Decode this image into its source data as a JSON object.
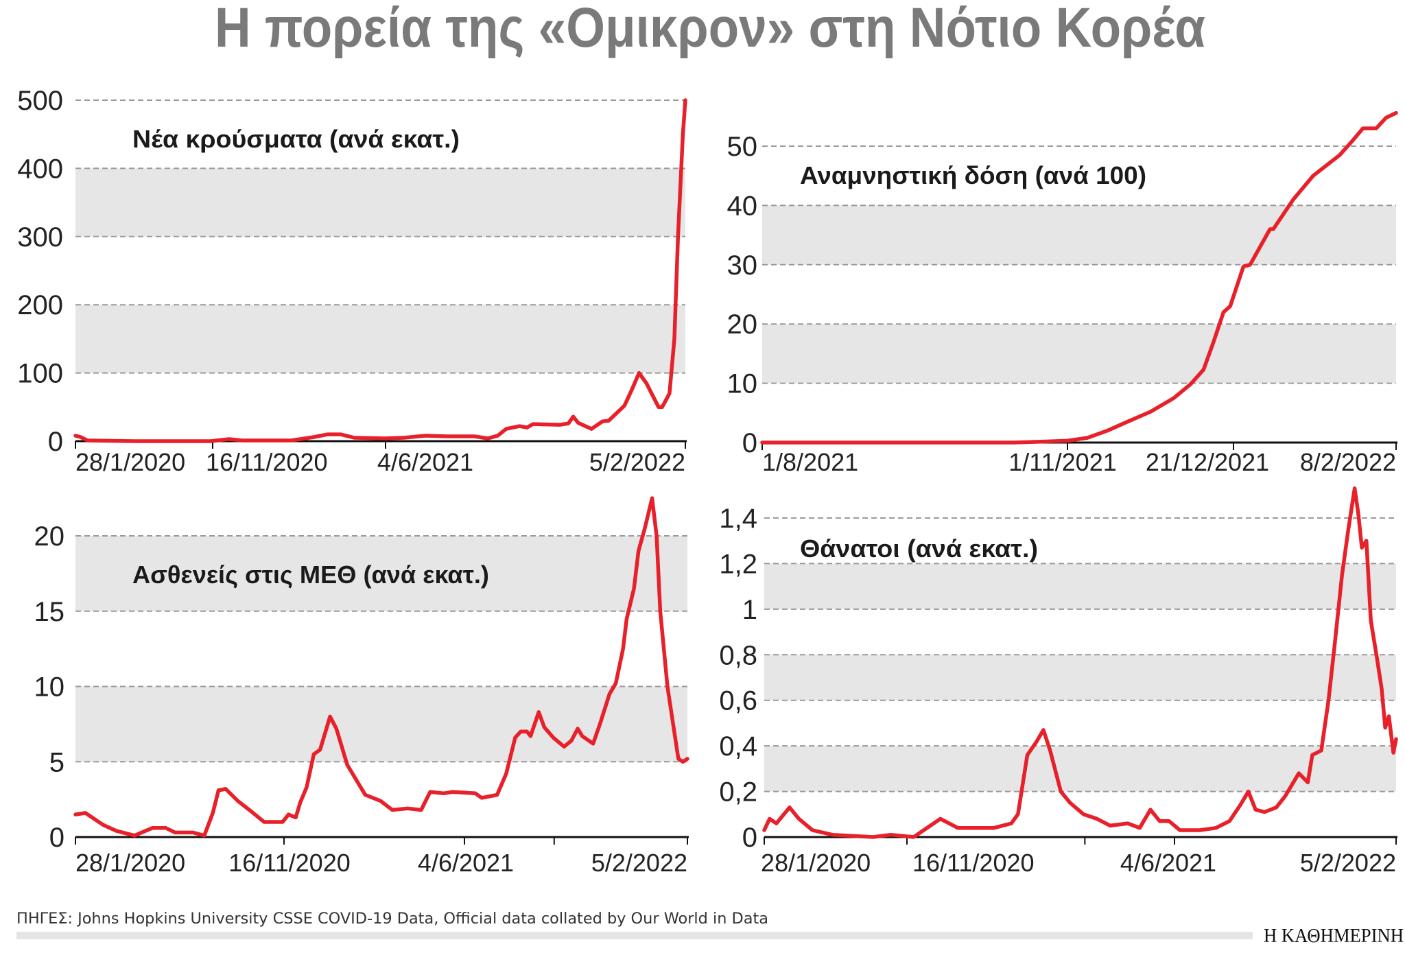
{
  "title": "Η πορεία της «Ομικρον» στη Νότιο Κορέα",
  "source": "ΠΗΓΕΣ: Johns Hopkins University CSSE COVID-19 Data, Official data collated by Our World in Data",
  "logo": "Η ΚΑΘΗΜΕΡΙΝΗ",
  "colors": {
    "line": "#e8202a",
    "band": "#e6e6e7",
    "grid": "#9a9a9a",
    "title": "#7a7a7a"
  },
  "chart_data": [
    {
      "type": "line",
      "title": "Νέα κρούσματα (ανά εκατ.)",
      "ylim": [
        0,
        500
      ],
      "grid": true,
      "y_ticks": [
        {
          "value": 0,
          "label": "0"
        },
        {
          "value": 100,
          "label": "100"
        },
        {
          "value": 200,
          "label": "200"
        },
        {
          "value": 300,
          "label": "300"
        },
        {
          "value": 400,
          "label": "400"
        },
        {
          "value": 500,
          "label": "500"
        }
      ],
      "shaded_bands": [
        [
          100,
          200
        ],
        [
          300,
          400
        ]
      ],
      "x_ticks": [
        {
          "date": "2020-01-28",
          "label": "28/1/2020"
        },
        {
          "date": "2020-11-16",
          "label": "16/11/2020"
        },
        {
          "date": "2021-06-04",
          "label": "4/6/2021"
        },
        {
          "date": "2022-02-05",
          "label": "5/2/2022"
        }
      ],
      "series": [
        {
          "points": [
            [
              "2020-01-28",
              8
            ],
            [
              "2020-02-08",
              6
            ],
            [
              "2020-02-23",
              1
            ],
            [
              "2020-06-02",
              0
            ],
            [
              "2020-11-12",
              0
            ],
            [
              "2020-12-05",
              3
            ],
            [
              "2020-12-20",
              1
            ],
            [
              "2021-02-15",
              1
            ],
            [
              "2021-03-13",
              6
            ],
            [
              "2021-03-29",
              10
            ],
            [
              "2021-04-13",
              10
            ],
            [
              "2021-04-29",
              5
            ],
            [
              "2021-06-03",
              4
            ],
            [
              "2021-06-19",
              5
            ],
            [
              "2021-07-07",
              8
            ],
            [
              "2021-07-25",
              7
            ],
            [
              "2021-08-16",
              7
            ],
            [
              "2021-08-27",
              4
            ],
            [
              "2021-09-04",
              8
            ],
            [
              "2021-09-11",
              18
            ],
            [
              "2021-09-22",
              22
            ],
            [
              "2021-09-28",
              20
            ],
            [
              "2021-10-03",
              25
            ],
            [
              "2021-10-25",
              24
            ],
            [
              "2021-11-01",
              26
            ],
            [
              "2021-11-05",
              36
            ],
            [
              "2021-11-09",
              27
            ],
            [
              "2021-11-20",
              18
            ],
            [
              "2021-11-29",
              29
            ],
            [
              "2021-12-04",
              30
            ],
            [
              "2021-12-17",
              52
            ],
            [
              "2021-12-23",
              75
            ],
            [
              "2021-12-29",
              100
            ],
            [
              "2022-01-04",
              85
            ],
            [
              "2022-01-14",
              50
            ],
            [
              "2022-01-17",
              50
            ],
            [
              "2022-01-23",
              70
            ],
            [
              "2022-01-27",
              150
            ],
            [
              "2022-01-30",
              300
            ],
            [
              "2022-02-03",
              450
            ],
            [
              "2022-02-05",
              500
            ]
          ]
        }
      ]
    },
    {
      "type": "line",
      "title": "Αναμνηστική δόση (ανά 100)",
      "ylim": [
        0,
        56
      ],
      "grid": true,
      "y_ticks": [
        {
          "value": 0,
          "label": "0"
        },
        {
          "value": 10,
          "label": "10"
        },
        {
          "value": 20,
          "label": "20"
        },
        {
          "value": 30,
          "label": "30"
        },
        {
          "value": 40,
          "label": "40"
        },
        {
          "value": 50,
          "label": "50"
        }
      ],
      "shaded_bands": [
        [
          10,
          20
        ],
        [
          30,
          40
        ]
      ],
      "x_ticks": [
        {
          "date": "2021-08-01",
          "label": "1/8/2021"
        },
        {
          "date": "2021-11-01",
          "label": "1/11/2021"
        },
        {
          "date": "2021-12-21",
          "label": "21/12/2021"
        },
        {
          "date": "2022-02-08",
          "label": "8/2/2022"
        }
      ],
      "series": [
        {
          "points": [
            [
              "2021-08-01",
              0
            ],
            [
              "2021-10-16",
              0
            ],
            [
              "2021-11-01",
              0.3
            ],
            [
              "2021-11-07",
              0.8
            ],
            [
              "2021-11-13",
              2
            ],
            [
              "2021-11-19",
              3.5
            ],
            [
              "2021-11-26",
              5.2
            ],
            [
              "2021-12-03",
              7.5
            ],
            [
              "2021-12-08",
              9.8
            ],
            [
              "2021-12-12",
              12.3
            ],
            [
              "2021-12-15",
              17
            ],
            [
              "2021-12-18",
              22
            ],
            [
              "2021-12-20",
              23
            ],
            [
              "2021-12-24",
              29.7
            ],
            [
              "2021-12-26",
              30
            ],
            [
              "2022-01-01",
              36
            ],
            [
              "2022-01-02",
              36
            ],
            [
              "2022-01-08",
              41
            ],
            [
              "2022-01-14",
              45
            ],
            [
              "2022-01-22",
              48.5
            ],
            [
              "2022-01-26",
              51
            ],
            [
              "2022-01-29",
              53
            ],
            [
              "2022-02-02",
              53
            ],
            [
              "2022-02-05",
              54.8
            ],
            [
              "2022-02-08",
              55.6
            ]
          ]
        }
      ]
    },
    {
      "type": "line",
      "title": "Ασθενείς στις ΜΕΘ (ανά εκατ.)",
      "ylim": [
        0,
        22.5
      ],
      "grid": true,
      "y_ticks": [
        {
          "value": 0,
          "label": "0"
        },
        {
          "value": 5,
          "label": "5"
        },
        {
          "value": 10,
          "label": "10"
        },
        {
          "value": 15,
          "label": "15"
        },
        {
          "value": 20,
          "label": "20"
        }
      ],
      "shaded_bands": [
        [
          5,
          10
        ],
        [
          15,
          20
        ]
      ],
      "x_ticks": [
        {
          "date": "2020-01-28",
          "label": "28/1/2020"
        },
        {
          "date": "2020-11-16",
          "label": "16/11/2020"
        },
        {
          "date": "2021-06-04",
          "label": "4/6/2021"
        },
        {
          "date": "2021-09-11",
          "label": ""
        },
        {
          "date": "2022-02-05",
          "label": "5/2/2022"
        }
      ],
      "series": [
        {
          "points": [
            [
              "2020-01-28",
              1.5
            ],
            [
              "2020-02-11",
              1.6
            ],
            [
              "2020-03-07",
              0.8
            ],
            [
              "2020-03-26",
              0.4
            ],
            [
              "2020-04-20",
              0.1
            ],
            [
              "2020-05-15",
              0.6
            ],
            [
              "2020-06-03",
              0.6
            ],
            [
              "2020-06-16",
              0.3
            ],
            [
              "2020-07-11",
              0.3
            ],
            [
              "2020-07-27",
              0.1
            ],
            [
              "2020-08-08",
              1.6
            ],
            [
              "2020-08-16",
              3.1
            ],
            [
              "2020-08-26",
              3.2
            ],
            [
              "2020-09-12",
              2.4
            ],
            [
              "2020-10-01",
              1.7
            ],
            [
              "2020-10-19",
              1.0
            ],
            [
              "2020-11-14",
              1.0
            ],
            [
              "2020-11-21",
              1.5
            ],
            [
              "2020-11-29",
              1.3
            ],
            [
              "2020-12-04",
              2.3
            ],
            [
              "2020-12-11",
              3.3
            ],
            [
              "2020-12-19",
              5.5
            ],
            [
              "2020-12-26",
              5.8
            ],
            [
              "2020-12-31",
              6.8
            ],
            [
              "2021-01-06",
              8.0
            ],
            [
              "2021-01-13",
              7.2
            ],
            [
              "2021-01-25",
              4.8
            ],
            [
              "2021-02-02",
              4.0
            ],
            [
              "2021-02-14",
              2.8
            ],
            [
              "2021-03-03",
              2.4
            ],
            [
              "2021-03-16",
              1.8
            ],
            [
              "2021-04-02",
              1.9
            ],
            [
              "2021-04-17",
              1.8
            ],
            [
              "2021-04-27",
              3.0
            ],
            [
              "2021-05-12",
              2.9
            ],
            [
              "2021-05-22",
              3.0
            ],
            [
              "2021-06-16",
              2.9
            ],
            [
              "2021-06-23",
              2.6
            ],
            [
              "2021-07-10",
              2.8
            ],
            [
              "2021-07-20",
              4.2
            ],
            [
              "2021-07-30",
              6.6
            ],
            [
              "2021-08-05",
              7.0
            ],
            [
              "2021-08-12",
              7.0
            ],
            [
              "2021-08-16",
              6.7
            ],
            [
              "2021-08-25",
              8.3
            ],
            [
              "2021-08-31",
              7.3
            ],
            [
              "2021-09-10",
              6.6
            ],
            [
              "2021-09-22",
              6.0
            ],
            [
              "2021-09-30",
              6.4
            ],
            [
              "2021-10-07",
              7.2
            ],
            [
              "2021-10-12",
              6.7
            ],
            [
              "2021-10-24",
              6.2
            ],
            [
              "2021-11-01",
              7.6
            ],
            [
              "2021-11-11",
              9.5
            ],
            [
              "2021-11-18",
              10.2
            ],
            [
              "2021-11-26",
              12.5
            ],
            [
              "2021-11-30",
              14.5
            ],
            [
              "2021-12-08",
              16.5
            ],
            [
              "2021-12-13",
              19.0
            ],
            [
              "2021-12-20",
              20.5
            ],
            [
              "2021-12-28",
              22.5
            ],
            [
              "2022-01-02",
              20.0
            ],
            [
              "2022-01-06",
              15.0
            ],
            [
              "2022-01-14",
              10.0
            ],
            [
              "2022-01-19",
              8.0
            ],
            [
              "2022-01-26",
              5.2
            ],
            [
              "2022-01-31",
              5.0
            ],
            [
              "2022-02-05",
              5.2
            ]
          ]
        }
      ]
    },
    {
      "type": "line",
      "title": "Θάνατοι (ανά εκατ.)",
      "ylim": [
        0,
        1.55
      ],
      "grid": true,
      "y_ticks": [
        {
          "value": 0,
          "label": "0"
        },
        {
          "value": 0.2,
          "label": "0,2"
        },
        {
          "value": 0.4,
          "label": "0,4"
        },
        {
          "value": 0.6,
          "label": "0,6"
        },
        {
          "value": 0.8,
          "label": "0,8"
        },
        {
          "value": 1,
          "label": "1"
        },
        {
          "value": 1.2,
          "label": "1,2"
        },
        {
          "value": 1.4,
          "label": "1,4"
        }
      ],
      "shaded_bands": [
        [
          0.2,
          0.4
        ],
        [
          0.6,
          0.8
        ],
        [
          1.0,
          1.2
        ]
      ],
      "x_ticks": [
        {
          "date": "2020-01-28",
          "label": "28/1/2020"
        },
        {
          "date": "2020-11-16",
          "label": "16/11/2020"
        },
        {
          "date": "2021-03-29",
          "label": ""
        },
        {
          "date": "2021-06-04",
          "label": "4/6/2021"
        },
        {
          "date": "2022-02-05",
          "label": "5/2/2022"
        }
      ],
      "series": [
        {
          "points": [
            [
              "2020-01-28",
              0.03
            ],
            [
              "2020-02-08",
              0.08
            ],
            [
              "2020-02-22",
              0.06
            ],
            [
              "2020-03-20",
              0.13
            ],
            [
              "2020-04-08",
              0.08
            ],
            [
              "2020-05-06",
              0.03
            ],
            [
              "2020-06-16",
              0.01
            ],
            [
              "2020-09-07",
              0.0
            ],
            [
              "2020-10-14",
              0.01
            ],
            [
              "2020-11-21",
              0.0
            ],
            [
              "2020-12-01",
              0.04
            ],
            [
              "2020-12-11",
              0.08
            ],
            [
              "2020-12-24",
              0.04
            ],
            [
              "2021-01-07",
              0.04
            ],
            [
              "2021-01-20",
              0.04
            ],
            [
              "2021-02-02",
              0.06
            ],
            [
              "2021-02-07",
              0.1
            ],
            [
              "2021-02-14",
              0.36
            ],
            [
              "2021-02-21",
              0.42
            ],
            [
              "2021-02-26",
              0.47
            ],
            [
              "2021-03-03",
              0.38
            ],
            [
              "2021-03-11",
              0.2
            ],
            [
              "2021-03-18",
              0.15
            ],
            [
              "2021-03-28",
              0.1
            ],
            [
              "2021-04-07",
              0.08
            ],
            [
              "2021-04-17",
              0.05
            ],
            [
              "2021-04-30",
              0.06
            ],
            [
              "2021-05-09",
              0.04
            ],
            [
              "2021-05-17",
              0.12
            ],
            [
              "2021-05-24",
              0.07
            ],
            [
              "2021-05-31",
              0.07
            ],
            [
              "2021-06-10",
              0.03
            ],
            [
              "2021-07-02",
              0.03
            ],
            [
              "2021-07-20",
              0.04
            ],
            [
              "2021-08-04",
              0.07
            ],
            [
              "2021-08-16",
              0.14
            ],
            [
              "2021-08-25",
              0.2
            ],
            [
              "2021-09-02",
              0.12
            ],
            [
              "2021-09-12",
              0.11
            ],
            [
              "2021-09-25",
              0.13
            ],
            [
              "2021-10-05",
              0.18
            ],
            [
              "2021-10-20",
              0.28
            ],
            [
              "2021-10-30",
              0.24
            ],
            [
              "2021-11-04",
              0.36
            ],
            [
              "2021-11-14",
              0.38
            ],
            [
              "2021-11-22",
              0.6
            ],
            [
              "2021-11-29",
              0.85
            ],
            [
              "2021-12-07",
              1.15
            ],
            [
              "2021-12-14",
              1.35
            ],
            [
              "2021-12-21",
              1.53
            ],
            [
              "2021-12-25",
              1.42
            ],
            [
              "2021-12-29",
              1.27
            ],
            [
              "2022-01-03",
              1.3
            ],
            [
              "2022-01-08",
              0.95
            ],
            [
              "2022-01-15",
              0.78
            ],
            [
              "2022-01-20",
              0.65
            ],
            [
              "2022-01-24",
              0.48
            ],
            [
              "2022-01-28",
              0.53
            ],
            [
              "2022-02-02",
              0.37
            ],
            [
              "2022-02-05",
              0.43
            ]
          ]
        }
      ]
    }
  ]
}
